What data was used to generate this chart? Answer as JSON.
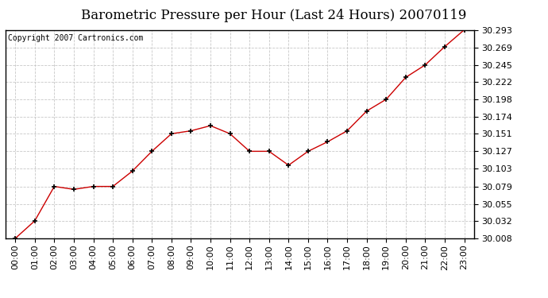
{
  "title": "Barometric Pressure per Hour (Last 24 Hours) 20070119",
  "copyright": "Copyright 2007 Cartronics.com",
  "x_labels": [
    "00:00",
    "01:00",
    "02:00",
    "03:00",
    "04:00",
    "05:00",
    "06:00",
    "07:00",
    "08:00",
    "09:00",
    "10:00",
    "11:00",
    "12:00",
    "13:00",
    "14:00",
    "15:00",
    "16:00",
    "17:00",
    "18:00",
    "19:00",
    "20:00",
    "21:00",
    "22:00",
    "23:00"
  ],
  "y_values": [
    30.008,
    30.032,
    30.079,
    30.075,
    30.079,
    30.079,
    30.1,
    30.127,
    30.151,
    30.155,
    30.162,
    30.151,
    30.127,
    30.127,
    30.108,
    30.127,
    30.14,
    30.155,
    30.182,
    30.198,
    30.228,
    30.245,
    30.27,
    30.293
  ],
  "y_ticks": [
    30.008,
    30.032,
    30.055,
    30.079,
    30.103,
    30.127,
    30.151,
    30.174,
    30.198,
    30.222,
    30.245,
    30.269,
    30.293
  ],
  "y_min": 30.008,
  "y_max": 30.293,
  "line_color": "#cc0000",
  "marker_color": "#000000",
  "bg_color": "#ffffff",
  "plot_bg_color": "#ffffff",
  "grid_color": "#c8c8c8",
  "title_fontsize": 12,
  "tick_fontsize": 8,
  "copyright_fontsize": 7
}
